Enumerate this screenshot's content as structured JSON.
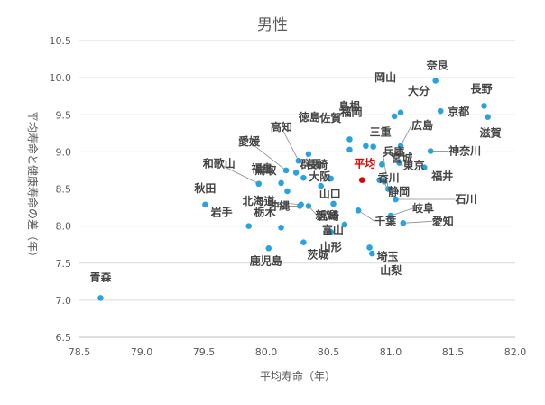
{
  "chart_data": {
    "type": "scatter",
    "title": "男性",
    "xlabel": "平均寿命（年）",
    "ylabel": "平均寿命と健康寿命の差（年）",
    "xlim": [
      78.5,
      82.0
    ],
    "ylim": [
      6.5,
      10.5
    ],
    "xticks": [
      78.5,
      79.0,
      79.5,
      80.0,
      80.5,
      81.0,
      81.5,
      82.0
    ],
    "yticks": [
      6.5,
      7.0,
      7.5,
      8.0,
      8.5,
      9.0,
      9.5,
      10.0,
      10.5
    ],
    "xtick_labels": [
      "78.5",
      "79.0",
      "79.5",
      "80.0",
      "80.5",
      "81.0",
      "81.5",
      "82.0"
    ],
    "ytick_labels": [
      "6.5",
      "7.0",
      "7.5",
      "8.0",
      "8.5",
      "9.0",
      "9.5",
      "10.0",
      "10.5"
    ],
    "grid": "horizontal",
    "colors": {
      "point": "#29a3e0",
      "highlight": "#e00000",
      "text": "#444444",
      "grid": "#d9d9d9",
      "axis": "#bfbfbf"
    },
    "points": [
      {
        "name": "青森",
        "x": 78.67,
        "y": 7.03
      },
      {
        "name": "秋田",
        "x": 79.51,
        "y": 8.29
      },
      {
        "name": "岩手",
        "x": 79.86,
        "y": 8.0
      },
      {
        "name": "和歌山",
        "x": 79.94,
        "y": 8.57
      },
      {
        "name": "鳥取",
        "x": 80.17,
        "y": 8.47
      },
      {
        "name": "北海道",
        "x": 80.28,
        "y": 8.29
      },
      {
        "name": "栃木",
        "x": 80.12,
        "y": 7.98
      },
      {
        "name": "鹿児島",
        "x": 80.02,
        "y": 7.7
      },
      {
        "name": "高知",
        "x": 80.26,
        "y": 8.88
      },
      {
        "name": "愛媛",
        "x": 80.16,
        "y": 8.75
      },
      {
        "name": "福島",
        "x": 80.12,
        "y": 8.58
      },
      {
        "name": "長崎",
        "x": 80.24,
        "y": 8.72
      },
      {
        "name": "大阪",
        "x": 80.3,
        "y": 8.65
      },
      {
        "name": "徳島",
        "x": 80.34,
        "y": 8.97
      },
      {
        "name": "山口",
        "x": 80.44,
        "y": 8.54
      },
      {
        "name": "沖縄",
        "x": 80.27,
        "y": 8.27
      },
      {
        "name": "宮崎",
        "x": 80.34,
        "y": 8.27
      },
      {
        "name": "茨城",
        "x": 80.3,
        "y": 7.78
      },
      {
        "name": "山形",
        "x": 80.52,
        "y": 7.92
      },
      {
        "name": "佐賀",
        "x": 80.67,
        "y": 9.03
      },
      {
        "name": "福岡",
        "x": 80.67,
        "y": 9.17
      },
      {
        "name": "群馬",
        "x": 80.52,
        "y": 8.64
      },
      {
        "name": "新潟",
        "x": 80.54,
        "y": 8.3
      },
      {
        "name": "富山",
        "x": 80.63,
        "y": 8.02
      },
      {
        "name": "島根",
        "x": 80.8,
        "y": 9.08
      },
      {
        "name": "三重",
        "x": 80.86,
        "y": 9.07
      },
      {
        "name": "平均",
        "x": 80.77,
        "y": 8.62,
        "highlight": true
      },
      {
        "name": "宮城",
        "x": 80.93,
        "y": 8.83
      },
      {
        "name": "香川",
        "x": 80.91,
        "y": 8.62
      },
      {
        "name": "静岡",
        "x": 80.95,
        "y": 8.6
      },
      {
        "name": "千葉",
        "x": 80.74,
        "y": 8.21
      },
      {
        "name": "兵庫",
        "x": 80.98,
        "y": 8.5
      },
      {
        "name": "埼玉",
        "x": 80.83,
        "y": 7.71
      },
      {
        "name": "山梨",
        "x": 80.85,
        "y": 7.63
      },
      {
        "name": "岐阜",
        "x": 81.0,
        "y": 8.14
      },
      {
        "name": "愛知",
        "x": 81.1,
        "y": 8.04
      },
      {
        "name": "石川",
        "x": 81.04,
        "y": 8.36
      },
      {
        "name": "岡山",
        "x": 81.03,
        "y": 9.48
      },
      {
        "name": "大分",
        "x": 81.08,
        "y": 9.53
      },
      {
        "name": "広島",
        "x": 81.08,
        "y": 9.08
      },
      {
        "name": "東京",
        "x": 81.07,
        "y": 8.85
      },
      {
        "name": "福井",
        "x": 81.27,
        "y": 8.79
      },
      {
        "name": "奈良",
        "x": 81.36,
        "y": 9.96
      },
      {
        "name": "京都",
        "x": 81.4,
        "y": 9.55
      },
      {
        "name": "神奈川",
        "x": 81.32,
        "y": 9.01
      },
      {
        "name": "長野",
        "x": 81.75,
        "y": 9.62
      },
      {
        "name": "滋賀",
        "x": 81.78,
        "y": 9.47
      }
    ]
  }
}
